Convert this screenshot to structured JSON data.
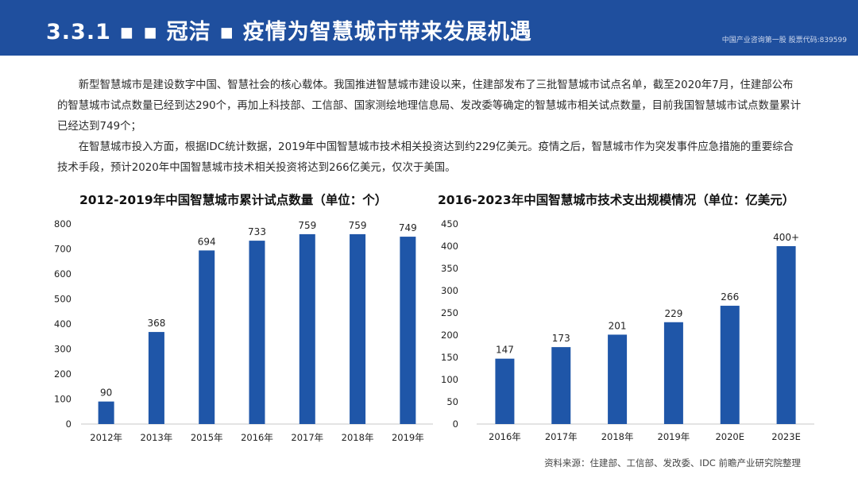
{
  "header": {
    "title": "3.3.1 ▪ ▪ 冠洁 ▪ 疫情为智慧城市带来发展机遇",
    "tag": "中国产业咨询第一股 股票代码:839599"
  },
  "intro": {
    "p1": "新型智慧城市是建设数字中国、智慧社会的核心载体。我国推进智慧城市建设以来，住建部发布了三批智慧城市试点名单，截至2020年7月，住建部公布的智慧城市试点数量已经到达290个，再加上科技部、工信部、国家测绘地理信息局、发改委等确定的智慧城市相关试点数量，目前我国智慧城市试点数量累计已经达到749个；",
    "p2": "在智慧城市投入方面，根据IDC统计数据，2019年中国智慧城市技术相关投资达到约229亿美元。疫情之后，智慧城市作为突发事件应急措施的重要综合技术手段，预计2020年中国智慧城市技术相关投资将达到266亿美元，仅次于美国。"
  },
  "source": "资料来源：住建部、工信部、发改委、IDC 前瞻产业研究院整理",
  "colors": {
    "header": "#1f4f9e",
    "bar": "#1f56a8"
  },
  "chart_data": [
    {
      "type": "bar",
      "title": "2012-2019年中国智慧城市累计试点数量（单位：个）",
      "categories": [
        "2012年",
        "2013年",
        "2015年",
        "2016年",
        "2017年",
        "2018年",
        "2019年"
      ],
      "values": [
        90,
        368,
        694,
        733,
        759,
        759,
        749
      ],
      "data_labels": [
        "90",
        "368",
        "694",
        "733",
        "759",
        "759",
        "749"
      ],
      "yticks": [
        0,
        100,
        200,
        300,
        400,
        500,
        600,
        700,
        800
      ],
      "ylim": [
        0,
        800
      ],
      "xlabel": "",
      "ylabel": "",
      "grid": false
    },
    {
      "type": "bar",
      "title": "2016-2023年中国智慧城市技术支出规模情况（单位：亿美元）",
      "categories": [
        "2016年",
        "2017年",
        "2018年",
        "2019年",
        "2020E",
        "2023E"
      ],
      "values": [
        147,
        173,
        201,
        229,
        266,
        400
      ],
      "data_labels": [
        "147",
        "173",
        "201",
        "229",
        "266",
        "400+"
      ],
      "yticks": [
        0,
        50,
        100,
        150,
        200,
        250,
        300,
        350,
        400,
        450
      ],
      "ylim": [
        0,
        450
      ],
      "xlabel": "",
      "ylabel": "",
      "grid": false
    }
  ]
}
